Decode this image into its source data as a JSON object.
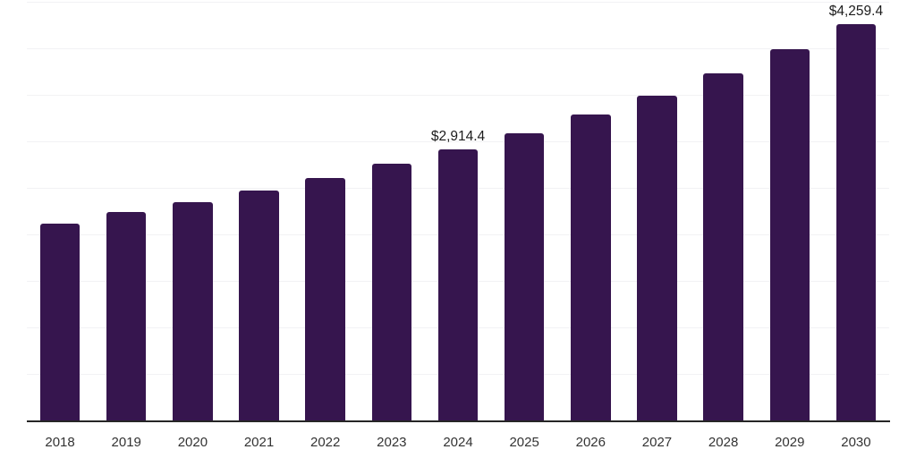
{
  "chart_data": {
    "type": "bar",
    "title": "",
    "xlabel": "",
    "ylabel": "",
    "categories": [
      "2018",
      "2019",
      "2020",
      "2021",
      "2022",
      "2023",
      "2024",
      "2025",
      "2026",
      "2027",
      "2028",
      "2029",
      "2030"
    ],
    "values": [
      2120,
      2245,
      2350,
      2475,
      2610,
      2755,
      2914.4,
      3090,
      3285,
      3490,
      3735,
      3990,
      4259.4
    ],
    "value_labels": {
      "2024": "$2,914.4",
      "2030": "$4,259.4"
    },
    "ylim": [
      0,
      4500
    ],
    "grid_step": 500,
    "grid": true,
    "legend_position": "none",
    "bar_color": "#36154E",
    "grid_color": "#F2F2F4",
    "axis_color": "#262626",
    "value_label_color": "#1C1C1C",
    "tick_label_color": "#333333",
    "background_color": "#FFFFFF"
  }
}
